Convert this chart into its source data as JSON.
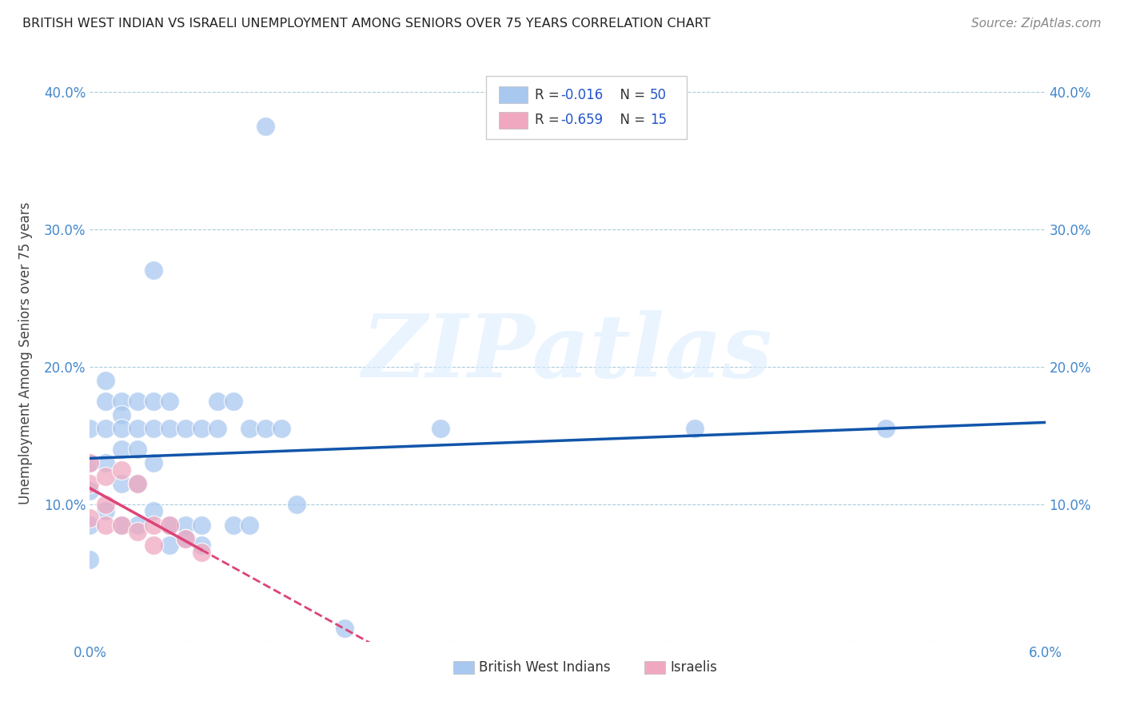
{
  "title": "BRITISH WEST INDIAN VS ISRAELI UNEMPLOYMENT AMONG SENIORS OVER 75 YEARS CORRELATION CHART",
  "source": "Source: ZipAtlas.com",
  "ylabel": "Unemployment Among Seniors over 75 years",
  "xlim": [
    0.0,
    0.06
  ],
  "ylim": [
    0.0,
    0.42
  ],
  "xticks": [
    0.0,
    0.01,
    0.02,
    0.03,
    0.04,
    0.05,
    0.06
  ],
  "yticks": [
    0.0,
    0.1,
    0.2,
    0.3,
    0.4
  ],
  "xtick_labels_left": [
    "0.0%",
    "",
    "",
    "",
    "",
    "",
    ""
  ],
  "xtick_labels_right": [
    "",
    "",
    "",
    "",
    "",
    "",
    "6.0%"
  ],
  "ytick_labels": [
    "",
    "10.0%",
    "20.0%",
    "30.0%",
    "40.0%"
  ],
  "right_ytick_labels": [
    "",
    "10.0%",
    "20.0%",
    "30.0%",
    "40.0%"
  ],
  "bwi_color": "#a8c8f0",
  "israeli_color": "#f0a8c0",
  "bwi_line_color": "#1155aa",
  "israeli_line_color": "#dd4477",
  "bwi_R": -0.016,
  "bwi_N": 50,
  "israeli_R": -0.659,
  "israeli_N": 15,
  "legend_label_bwi": "British West Indians",
  "legend_label_israeli": "Israelis",
  "watermark": "ZIPatlas",
  "bwi_x": [
    0.0,
    0.0,
    0.0,
    0.0,
    0.0,
    0.001,
    0.001,
    0.001,
    0.001,
    0.001,
    0.002,
    0.002,
    0.002,
    0.002,
    0.002,
    0.002,
    0.003,
    0.003,
    0.003,
    0.003,
    0.003,
    0.004,
    0.004,
    0.004,
    0.004,
    0.004,
    0.005,
    0.005,
    0.005,
    0.005,
    0.006,
    0.006,
    0.006,
    0.007,
    0.007,
    0.007,
    0.008,
    0.008,
    0.009,
    0.009,
    0.01,
    0.01,
    0.011,
    0.011,
    0.012,
    0.013,
    0.016,
    0.022,
    0.038,
    0.05
  ],
  "bwi_y": [
    0.155,
    0.13,
    0.11,
    0.085,
    0.06,
    0.19,
    0.175,
    0.155,
    0.13,
    0.095,
    0.175,
    0.165,
    0.155,
    0.14,
    0.115,
    0.085,
    0.175,
    0.155,
    0.14,
    0.115,
    0.085,
    0.27,
    0.175,
    0.155,
    0.13,
    0.095,
    0.175,
    0.155,
    0.085,
    0.07,
    0.155,
    0.085,
    0.075,
    0.155,
    0.085,
    0.07,
    0.175,
    0.155,
    0.175,
    0.085,
    0.155,
    0.085,
    0.375,
    0.155,
    0.155,
    0.1,
    0.01,
    0.155,
    0.155,
    0.155
  ],
  "israeli_x": [
    0.0,
    0.0,
    0.0,
    0.001,
    0.001,
    0.001,
    0.002,
    0.002,
    0.003,
    0.003,
    0.004,
    0.004,
    0.005,
    0.006,
    0.007
  ],
  "israeli_y": [
    0.13,
    0.115,
    0.09,
    0.12,
    0.1,
    0.085,
    0.125,
    0.085,
    0.115,
    0.08,
    0.085,
    0.07,
    0.085,
    0.075,
    0.065
  ]
}
